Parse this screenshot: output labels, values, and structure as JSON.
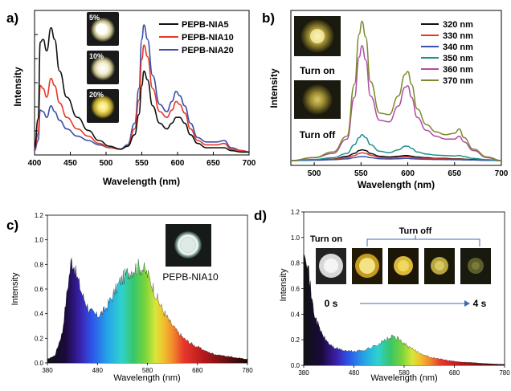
{
  "chart_data": [
    {
      "panel": "a)",
      "type": "line",
      "xlabel": "Wavelength (nm)",
      "ylabel": "Intensity",
      "xlim": [
        400,
        700
      ],
      "xticks": [
        "400",
        "450",
        "500",
        "550",
        "600",
        "650",
        "700"
      ],
      "y_tick_labels": false,
      "legend": "top-right",
      "inset_labels": [
        "5%",
        "10%",
        "20%"
      ],
      "series": [
        {
          "name": "PEPB-NIA5",
          "color": "#111111",
          "x": [
            400,
            405,
            408,
            412,
            417,
            423,
            428,
            435,
            445,
            460,
            475,
            490,
            505,
            520,
            530,
            540,
            546,
            550,
            553,
            558,
            565,
            575,
            585,
            592,
            598,
            603,
            610,
            618,
            628,
            640,
            655,
            665,
            675,
            690,
            700
          ],
          "y": [
            0.05,
            0.25,
            0.78,
            0.8,
            0.72,
            0.88,
            0.8,
            0.58,
            0.4,
            0.26,
            0.17,
            0.1,
            0.06,
            0.04,
            0.06,
            0.14,
            0.28,
            0.48,
            0.58,
            0.52,
            0.34,
            0.22,
            0.18,
            0.22,
            0.26,
            0.26,
            0.22,
            0.14,
            0.08,
            0.05,
            0.05,
            0.05,
            0.03,
            0.02,
            0.02
          ]
        },
        {
          "name": "PEPB-NIA10",
          "color": "#e8382b",
          "x": [
            400,
            405,
            408,
            412,
            417,
            423,
            428,
            435,
            445,
            460,
            475,
            490,
            505,
            520,
            530,
            540,
            546,
            550,
            553,
            558,
            565,
            575,
            585,
            592,
            598,
            603,
            610,
            618,
            628,
            640,
            655,
            665,
            675,
            690,
            700
          ],
          "y": [
            0.04,
            0.15,
            0.48,
            0.46,
            0.4,
            0.53,
            0.48,
            0.36,
            0.26,
            0.18,
            0.13,
            0.08,
            0.05,
            0.04,
            0.06,
            0.18,
            0.38,
            0.66,
            0.76,
            0.68,
            0.46,
            0.3,
            0.26,
            0.31,
            0.37,
            0.35,
            0.29,
            0.18,
            0.1,
            0.07,
            0.07,
            0.08,
            0.04,
            0.03,
            0.02
          ]
        },
        {
          "name": "PEPB-NIA20",
          "color": "#3a4fa8",
          "x": [
            400,
            405,
            408,
            412,
            417,
            423,
            428,
            435,
            445,
            460,
            475,
            490,
            505,
            520,
            530,
            540,
            546,
            550,
            553,
            558,
            565,
            575,
            585,
            592,
            598,
            603,
            610,
            618,
            628,
            640,
            655,
            665,
            675,
            690,
            700
          ],
          "y": [
            0.03,
            0.1,
            0.31,
            0.3,
            0.26,
            0.34,
            0.3,
            0.24,
            0.18,
            0.13,
            0.1,
            0.07,
            0.05,
            0.04,
            0.07,
            0.22,
            0.46,
            0.8,
            0.9,
            0.8,
            0.55,
            0.35,
            0.3,
            0.37,
            0.44,
            0.41,
            0.34,
            0.22,
            0.12,
            0.09,
            0.09,
            0.1,
            0.05,
            0.03,
            0.02
          ]
        }
      ]
    },
    {
      "panel": "b)",
      "type": "line",
      "xlabel": "Wavelength (nm)",
      "ylabel": "Intensity",
      "xlim": [
        475,
        700
      ],
      "xticks": [
        "500",
        "550",
        "600",
        "650",
        "700"
      ],
      "y_tick_labels": false,
      "legend": "top-right",
      "inset_labels": [
        "Turn on",
        "Turn off"
      ],
      "series": [
        {
          "name": "320 nm",
          "color": "#111111",
          "x": [
            475,
            500,
            520,
            535,
            543,
            548,
            551,
            555,
            560,
            570,
            580,
            590,
            597,
            600,
            604,
            610,
            620,
            630,
            640,
            650,
            655,
            660,
            670,
            685,
            700
          ],
          "y": [
            0.0,
            0.005,
            0.01,
            0.03,
            0.05,
            0.07,
            0.075,
            0.07,
            0.05,
            0.03,
            0.025,
            0.03,
            0.035,
            0.035,
            0.03,
            0.025,
            0.02,
            0.015,
            0.015,
            0.012,
            0.012,
            0.01,
            0.007,
            0.003,
            0.0
          ]
        },
        {
          "name": "330 nm",
          "color": "#e8382b",
          "x": [
            475,
            500,
            520,
            535,
            543,
            548,
            551,
            555,
            560,
            570,
            580,
            590,
            597,
            600,
            604,
            610,
            620,
            630,
            640,
            650,
            655,
            660,
            670,
            685,
            700
          ],
          "y": [
            0.0,
            0.004,
            0.008,
            0.02,
            0.035,
            0.05,
            0.055,
            0.05,
            0.038,
            0.022,
            0.018,
            0.022,
            0.026,
            0.026,
            0.022,
            0.018,
            0.014,
            0.012,
            0.011,
            0.009,
            0.009,
            0.008,
            0.005,
            0.002,
            0.0
          ]
        },
        {
          "name": "340 nm",
          "color": "#3a4fa8",
          "x": [
            475,
            500,
            520,
            535,
            543,
            548,
            551,
            555,
            560,
            570,
            580,
            590,
            597,
            600,
            604,
            610,
            620,
            630,
            640,
            650,
            655,
            660,
            670,
            685,
            700
          ],
          "y": [
            0.0,
            0.003,
            0.006,
            0.012,
            0.02,
            0.026,
            0.028,
            0.026,
            0.02,
            0.013,
            0.011,
            0.013,
            0.015,
            0.015,
            0.013,
            0.011,
            0.009,
            0.008,
            0.007,
            0.006,
            0.006,
            0.005,
            0.004,
            0.002,
            0.0
          ]
        },
        {
          "name": "350 nm",
          "color": "#1f8f8f",
          "x": [
            475,
            500,
            520,
            535,
            543,
            548,
            551,
            555,
            560,
            570,
            580,
            590,
            597,
            600,
            604,
            610,
            620,
            630,
            640,
            650,
            655,
            660,
            670,
            685,
            700
          ],
          "y": [
            0.0,
            0.008,
            0.02,
            0.05,
            0.11,
            0.16,
            0.18,
            0.16,
            0.11,
            0.065,
            0.055,
            0.075,
            0.1,
            0.1,
            0.085,
            0.06,
            0.045,
            0.038,
            0.035,
            0.032,
            0.036,
            0.028,
            0.015,
            0.006,
            0.0
          ]
        },
        {
          "name": "360 nm",
          "color": "#b24aa6",
          "x": [
            475,
            500,
            520,
            535,
            543,
            548,
            551,
            555,
            560,
            570,
            580,
            590,
            597,
            600,
            604,
            610,
            620,
            630,
            640,
            650,
            655,
            660,
            670,
            685,
            700
          ],
          "y": [
            0.0,
            0.02,
            0.05,
            0.15,
            0.44,
            0.72,
            0.8,
            0.7,
            0.45,
            0.28,
            0.27,
            0.38,
            0.51,
            0.52,
            0.44,
            0.3,
            0.21,
            0.17,
            0.15,
            0.15,
            0.17,
            0.13,
            0.07,
            0.02,
            0.0
          ]
        },
        {
          "name": "370 nm",
          "color": "#7a8a2a",
          "x": [
            475,
            500,
            520,
            535,
            543,
            548,
            551,
            555,
            560,
            570,
            580,
            590,
            597,
            600,
            604,
            610,
            620,
            630,
            640,
            650,
            655,
            660,
            670,
            685,
            700
          ],
          "y": [
            0.0,
            0.022,
            0.06,
            0.17,
            0.53,
            0.88,
            0.97,
            0.86,
            0.55,
            0.33,
            0.32,
            0.45,
            0.6,
            0.62,
            0.53,
            0.36,
            0.25,
            0.2,
            0.18,
            0.19,
            0.22,
            0.16,
            0.08,
            0.025,
            0.0
          ]
        }
      ]
    },
    {
      "panel": "c)",
      "type": "area",
      "xlabel": "Wavelength (nm)",
      "ylabel": "Intensity",
      "xlim": [
        380,
        780
      ],
      "ylim": [
        0,
        1.2
      ],
      "xticks": [
        "380",
        "480",
        "580",
        "680",
        "780"
      ],
      "yticks": [
        "0.0",
        "0.2",
        "0.4",
        "0.6",
        "0.8",
        "1.0",
        "1.2"
      ],
      "fill": "visible-spectrum gradient",
      "inset_labels": [
        "PEPB-NIA10"
      ],
      "x": [
        380,
        395,
        410,
        420,
        428,
        433,
        437,
        442,
        450,
        465,
        480,
        495,
        510,
        525,
        540,
        550,
        560,
        566,
        572,
        580,
        590,
        600,
        612,
        625,
        640,
        655,
        670,
        685,
        700,
        715,
        730,
        745,
        760,
        780
      ],
      "y": [
        0.03,
        0.06,
        0.25,
        0.6,
        0.84,
        0.8,
        0.72,
        0.66,
        0.55,
        0.42,
        0.38,
        0.43,
        0.54,
        0.66,
        0.73,
        0.76,
        0.78,
        0.78,
        0.76,
        0.72,
        0.63,
        0.52,
        0.42,
        0.33,
        0.25,
        0.19,
        0.15,
        0.12,
        0.09,
        0.07,
        0.06,
        0.05,
        0.04,
        0.03
      ]
    },
    {
      "panel": "d)",
      "type": "area",
      "xlabel": "Wavelength (nm)",
      "ylabel": "Intensity",
      "xlim": [
        380,
        780
      ],
      "ylim": [
        0,
        1.2
      ],
      "xticks": [
        "380",
        "480",
        "580",
        "680",
        "780"
      ],
      "yticks": [
        "0.0",
        "0.2",
        "0.4",
        "0.6",
        "0.8",
        "1.0",
        "1.2"
      ],
      "fill": "visible-spectrum gradient",
      "inset_labels": [
        "Turn on",
        "Turn off",
        "0 s",
        "4 s"
      ],
      "x": [
        380,
        383,
        386,
        390,
        395,
        400,
        410,
        420,
        430,
        440,
        455,
        470,
        485,
        500,
        515,
        530,
        545,
        555,
        562,
        570,
        580,
        590,
        600,
        610,
        620,
        635,
        650,
        665,
        680,
        700,
        720,
        740,
        760,
        780
      ],
      "y": [
        0.95,
        0.92,
        0.85,
        0.72,
        0.55,
        0.42,
        0.3,
        0.22,
        0.17,
        0.14,
        0.12,
        0.11,
        0.11,
        0.12,
        0.14,
        0.17,
        0.2,
        0.22,
        0.22,
        0.2,
        0.17,
        0.14,
        0.12,
        0.1,
        0.08,
        0.06,
        0.05,
        0.04,
        0.03,
        0.025,
        0.02,
        0.015,
        0.01,
        0.008
      ]
    }
  ]
}
